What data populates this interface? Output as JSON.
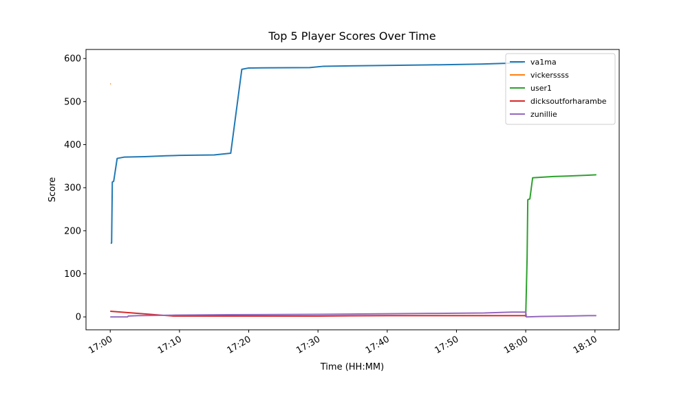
{
  "chart_data": {
    "type": "line",
    "title": "Top 5 Player Scores Over Time",
    "x_label": "Time (HH:MM)",
    "y_label": "Score",
    "xlim": [
      1016.5,
      1093.5
    ],
    "ylim": [
      -30,
      621
    ],
    "xticks": [
      {
        "value": 1020,
        "label": "17:00"
      },
      {
        "value": 1030,
        "label": "17:10"
      },
      {
        "value": 1040,
        "label": "17:20"
      },
      {
        "value": 1050,
        "label": "17:30"
      },
      {
        "value": 1060,
        "label": "17:40"
      },
      {
        "value": 1070,
        "label": "17:50"
      },
      {
        "value": 1080,
        "label": "18:00"
      },
      {
        "value": 1090,
        "label": "18:10"
      }
    ],
    "yticks": [
      0,
      100,
      200,
      300,
      400,
      500,
      600
    ],
    "legend": "upper right",
    "series": [
      {
        "name": "va1ma",
        "color": "#1f77b4",
        "x": [
          1020.1,
          1020.2,
          1020.3,
          1020.5,
          1021,
          1022,
          1025,
          1028,
          1030,
          1035,
          1037.4,
          1039,
          1040,
          1048.8,
          1050.8,
          1059.7,
          1065.7,
          1073.6,
          1079.6
        ],
        "values": [
          170,
          172,
          313,
          315,
          368,
          371,
          372,
          374,
          375,
          376,
          380,
          575,
          578,
          579,
          582,
          584,
          585,
          587,
          590
        ]
      },
      {
        "name": "vickerssss",
        "color": "#ff7f0e",
        "x": [
          1020,
          1020.1
        ],
        "values": [
          541,
          541
        ]
      },
      {
        "name": "user1",
        "color": "#2ca02c",
        "x": [
          1080,
          1080.2,
          1080.3,
          1080.6,
          1081,
          1082,
          1084,
          1086,
          1089,
          1090.2
        ],
        "values": [
          0,
          137,
          272,
          274,
          323,
          324,
          326,
          327,
          329,
          330
        ]
      },
      {
        "name": "dicksoutforharambe",
        "color": "#d62728",
        "x": [
          1020,
          1029,
          1050,
          1060,
          1080
        ],
        "values": [
          13,
          2,
          2,
          3,
          3
        ]
      },
      {
        "name": "zunillie",
        "color": "#9467bd",
        "x": [
          1020,
          1022.5,
          1022.6,
          1024,
          1029,
          1037,
          1050,
          1066,
          1074,
          1078,
          1080,
          1080.1,
          1082,
          1086,
          1089,
          1090.2
        ],
        "values": [
          0,
          0,
          2,
          3,
          4,
          5,
          6,
          8,
          9,
          11,
          11,
          0,
          1,
          2,
          3,
          3
        ]
      }
    ]
  }
}
